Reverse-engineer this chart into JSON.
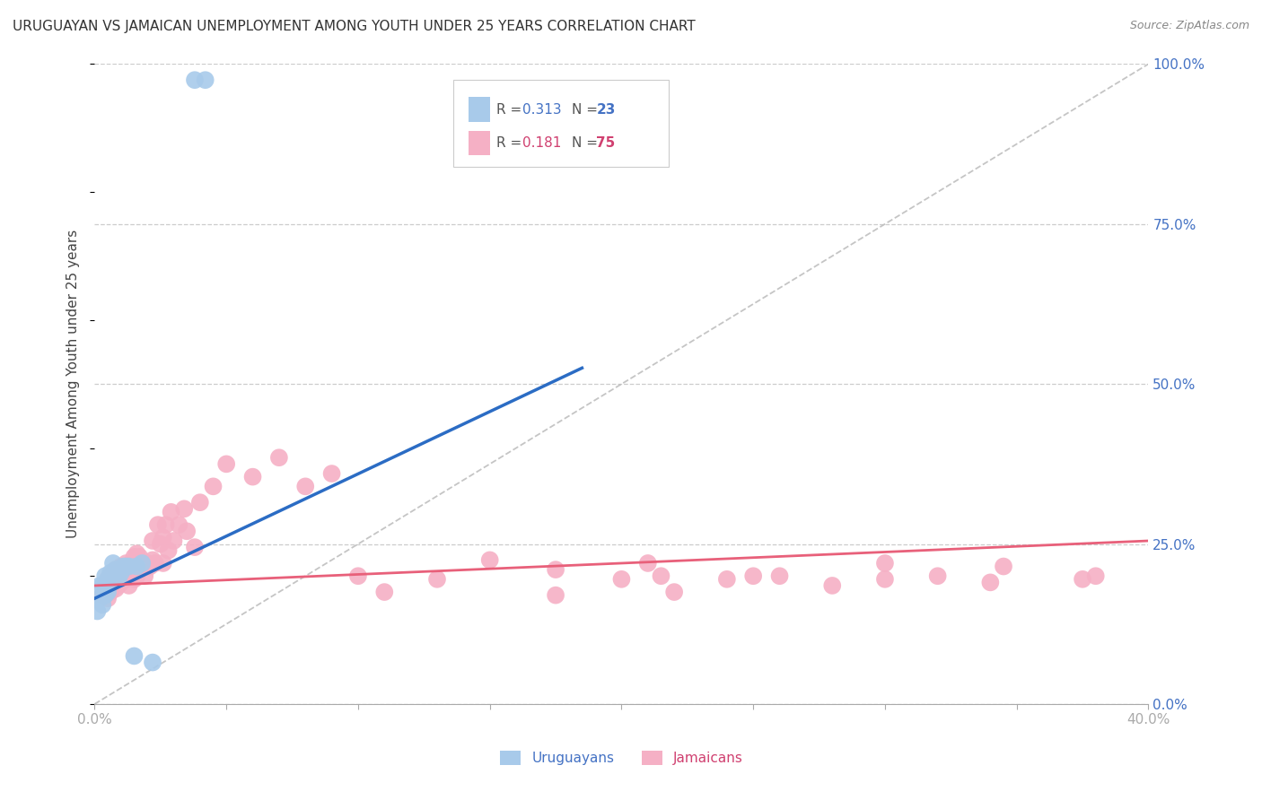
{
  "title": "URUGUAYAN VS JAMAICAN UNEMPLOYMENT AMONG YOUTH UNDER 25 YEARS CORRELATION CHART",
  "source": "Source: ZipAtlas.com",
  "ylabel": "Unemployment Among Youth under 25 years",
  "xlim": [
    0.0,
    0.4
  ],
  "ylim": [
    0.0,
    1.0
  ],
  "xtick_positions": [
    0.0,
    0.05,
    0.1,
    0.15,
    0.2,
    0.25,
    0.3,
    0.35,
    0.4
  ],
  "xticklabels": [
    "0.0%",
    "",
    "",
    "",
    "",
    "",
    "",
    "",
    "40.0%"
  ],
  "ytick_right_labels": [
    "100.0%",
    "75.0%",
    "50.0%",
    "25.0%",
    "0.0%"
  ],
  "ytick_right_values": [
    1.0,
    0.75,
    0.5,
    0.25,
    0.0
  ],
  "ytick_grid_values": [
    0.0,
    0.25,
    0.5,
    0.75,
    1.0
  ],
  "blue_r": 0.313,
  "blue_n": 23,
  "pink_r": 0.181,
  "pink_n": 75,
  "blue_scatter_color": "#A8CAEA",
  "pink_scatter_color": "#F5B0C5",
  "blue_line_color": "#2B6CC4",
  "pink_line_color": "#E8607A",
  "blue_text_color": "#4472C4",
  "pink_text_color": "#D04070",
  "diagonal_color": "#BBBBBB",
  "grid_color": "#CCCCCC",
  "background_color": "#FFFFFF",
  "blue_line_x": [
    0.0,
    0.185
  ],
  "blue_line_y": [
    0.165,
    0.525
  ],
  "pink_line_x": [
    0.0,
    0.4
  ],
  "pink_line_y": [
    0.185,
    0.255
  ],
  "uruguayan_x": [
    0.001,
    0.002,
    0.002,
    0.003,
    0.003,
    0.004,
    0.004,
    0.005,
    0.005,
    0.006,
    0.007,
    0.008,
    0.009,
    0.01,
    0.011,
    0.012,
    0.013,
    0.015,
    0.016,
    0.018,
    0.022,
    0.038,
    0.042
  ],
  "uruguayan_y": [
    0.145,
    0.165,
    0.185,
    0.155,
    0.185,
    0.17,
    0.2,
    0.175,
    0.195,
    0.205,
    0.22,
    0.21,
    0.195,
    0.205,
    0.215,
    0.215,
    0.215,
    0.075,
    0.215,
    0.22,
    0.065,
    0.975,
    0.975
  ],
  "jamaican_x": [
    0.003,
    0.004,
    0.005,
    0.005,
    0.006,
    0.006,
    0.007,
    0.007,
    0.008,
    0.008,
    0.009,
    0.009,
    0.01,
    0.01,
    0.011,
    0.011,
    0.012,
    0.012,
    0.013,
    0.013,
    0.014,
    0.014,
    0.015,
    0.015,
    0.016,
    0.016,
    0.017,
    0.017,
    0.018,
    0.019,
    0.02,
    0.021,
    0.022,
    0.022,
    0.023,
    0.024,
    0.025,
    0.026,
    0.026,
    0.027,
    0.028,
    0.029,
    0.03,
    0.032,
    0.034,
    0.035,
    0.038,
    0.04,
    0.045,
    0.05,
    0.06,
    0.07,
    0.08,
    0.09,
    0.1,
    0.11,
    0.13,
    0.15,
    0.175,
    0.2,
    0.215,
    0.22,
    0.24,
    0.26,
    0.28,
    0.3,
    0.32,
    0.34,
    0.175,
    0.21,
    0.25,
    0.3,
    0.345,
    0.375,
    0.38
  ],
  "jamaican_y": [
    0.17,
    0.185,
    0.165,
    0.195,
    0.175,
    0.2,
    0.185,
    0.205,
    0.18,
    0.21,
    0.185,
    0.205,
    0.19,
    0.215,
    0.195,
    0.21,
    0.195,
    0.22,
    0.185,
    0.215,
    0.2,
    0.22,
    0.195,
    0.23,
    0.2,
    0.235,
    0.21,
    0.23,
    0.215,
    0.2,
    0.22,
    0.215,
    0.225,
    0.255,
    0.22,
    0.28,
    0.25,
    0.22,
    0.26,
    0.28,
    0.24,
    0.3,
    0.255,
    0.28,
    0.305,
    0.27,
    0.245,
    0.315,
    0.34,
    0.375,
    0.355,
    0.385,
    0.34,
    0.36,
    0.2,
    0.175,
    0.195,
    0.225,
    0.17,
    0.195,
    0.2,
    0.175,
    0.195,
    0.2,
    0.185,
    0.22,
    0.2,
    0.19,
    0.21,
    0.22,
    0.2,
    0.195,
    0.215,
    0.195,
    0.2
  ]
}
